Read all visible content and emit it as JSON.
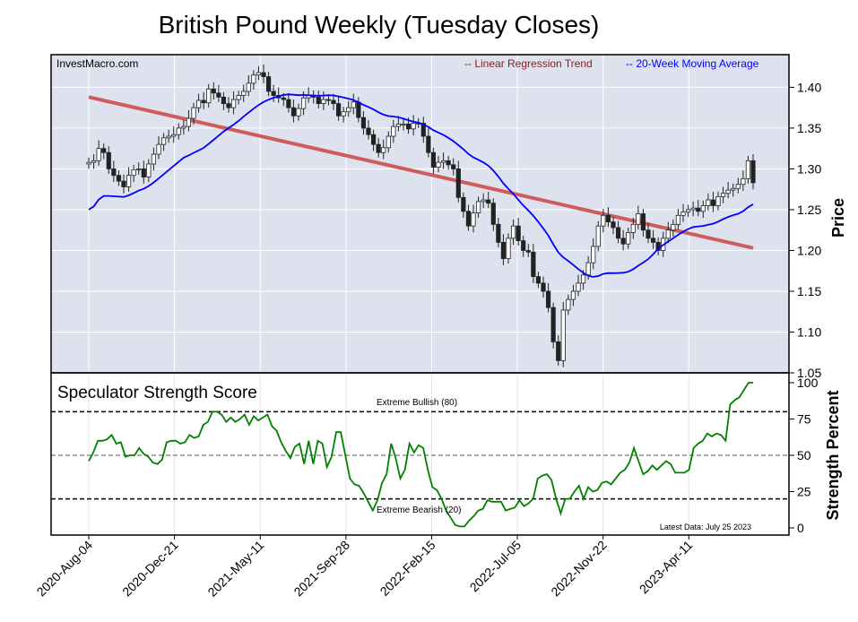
{
  "chart_data": [
    {
      "type": "candlestick",
      "title": "British Pound Weekly (Tuesday Closes)",
      "source_label": "InvestMacro.com",
      "ylabel": "Price",
      "ylim": [
        1.05,
        1.44
      ],
      "yticks": [
        1.05,
        1.1,
        1.15,
        1.2,
        1.25,
        1.3,
        1.35,
        1.4
      ],
      "ytick_labels": [
        "1.05",
        "1.10",
        "1.15",
        "1.20",
        "1.25",
        "1.30",
        "1.35",
        "1.40"
      ],
      "x_start": "2020-08-04",
      "x_end": "2023-07-25",
      "xtick_labels": [
        "2020-Aug-04",
        "2020-Dec-21",
        "2021-May-11",
        "2021-Sep-28",
        "2022-Feb-15",
        "2022-Jul-05",
        "2022-Nov-22",
        "2023-Apr-11"
      ],
      "legend": [
        {
          "label": "-- Linear Regression Trend",
          "color": "#8B1A1A"
        },
        {
          "label": "-- 20-Week Moving Average",
          "color": "#0000FF"
        }
      ],
      "regression_line": {
        "start": 1.388,
        "end": 1.203,
        "color": "#CD5C5C"
      },
      "closes": [
        1.308,
        1.31,
        1.325,
        1.32,
        1.3,
        1.292,
        1.285,
        1.278,
        1.292,
        1.299,
        1.3,
        1.29,
        1.306,
        1.318,
        1.33,
        1.338,
        1.34,
        1.342,
        1.35,
        1.352,
        1.362,
        1.375,
        1.384,
        1.381,
        1.398,
        1.393,
        1.388,
        1.38,
        1.375,
        1.385,
        1.39,
        1.395,
        1.405,
        1.415,
        1.418,
        1.413,
        1.395,
        1.39,
        1.387,
        1.385,
        1.375,
        1.365,
        1.374,
        1.387,
        1.39,
        1.388,
        1.38,
        1.385,
        1.384,
        1.38,
        1.365,
        1.37,
        1.375,
        1.382,
        1.363,
        1.35,
        1.342,
        1.33,
        1.32,
        1.326,
        1.34,
        1.352,
        1.355,
        1.355,
        1.349,
        1.356,
        1.356,
        1.34,
        1.32,
        1.302,
        1.308,
        1.31,
        1.305,
        1.3,
        1.265,
        1.248,
        1.23,
        1.246,
        1.26,
        1.262,
        1.258,
        1.232,
        1.21,
        1.19,
        1.215,
        1.23,
        1.212,
        1.2,
        1.198,
        1.168,
        1.16,
        1.15,
        1.13,
        1.088,
        1.065,
        1.127,
        1.14,
        1.15,
        1.16,
        1.17,
        1.185,
        1.205,
        1.23,
        1.243,
        1.235,
        1.228,
        1.215,
        1.208,
        1.222,
        1.232,
        1.245,
        1.225,
        1.215,
        1.21,
        1.2,
        1.215,
        1.225,
        1.232,
        1.243,
        1.247,
        1.25,
        1.252,
        1.248,
        1.255,
        1.262,
        1.255,
        1.266,
        1.27,
        1.274,
        1.276,
        1.281,
        1.288,
        1.31,
        1.283
      ]
    },
    {
      "type": "line",
      "title": "Speculator Strength Score",
      "ylabel": "Strength Percent",
      "ylim": [
        0,
        100
      ],
      "yticks": [
        0,
        25,
        50,
        75,
        100
      ],
      "ytick_labels": [
        "0",
        "25",
        "50",
        "75",
        "100"
      ],
      "reference_lines": [
        {
          "value": 80,
          "label": "Extreme Bullish (80)"
        },
        {
          "value": 50,
          "label": ""
        },
        {
          "value": 20,
          "label": "Extreme Bearish (20)"
        }
      ],
      "annotation": "Latest Data: July 25 2023",
      "series": [
        {
          "color": "#008000",
          "values": [
            46,
            52,
            60,
            60,
            61,
            64,
            58,
            59,
            49,
            50,
            50,
            55,
            51,
            49,
            45,
            44,
            47,
            59,
            60,
            60,
            58,
            59,
            64,
            62,
            63,
            71,
            73,
            80,
            80,
            78,
            73,
            76,
            73,
            75,
            78,
            71,
            77,
            74,
            76,
            78,
            70,
            67,
            59,
            53,
            48,
            56,
            58,
            44,
            60,
            44,
            60,
            58,
            42,
            49,
            66,
            66,
            50,
            34,
            30,
            29,
            24,
            18,
            12,
            19,
            31,
            37,
            58,
            48,
            34,
            40,
            58,
            52,
            57,
            55,
            40,
            28,
            26,
            20,
            12,
            7,
            2,
            1,
            1,
            5,
            8,
            12,
            13,
            19,
            18,
            18,
            18,
            12,
            13,
            14,
            19,
            15,
            17,
            20,
            34,
            36,
            37,
            33,
            20,
            10,
            20,
            20,
            25,
            29,
            20,
            28,
            25,
            26,
            31,
            32,
            30,
            34,
            38,
            40,
            45,
            55,
            46,
            37,
            39,
            43,
            40,
            43,
            46,
            44,
            38,
            38,
            38,
            40,
            55,
            58,
            60,
            65,
            63,
            65,
            64,
            60,
            85,
            88,
            90,
            95,
            100,
            100
          ]
        }
      ]
    }
  ]
}
